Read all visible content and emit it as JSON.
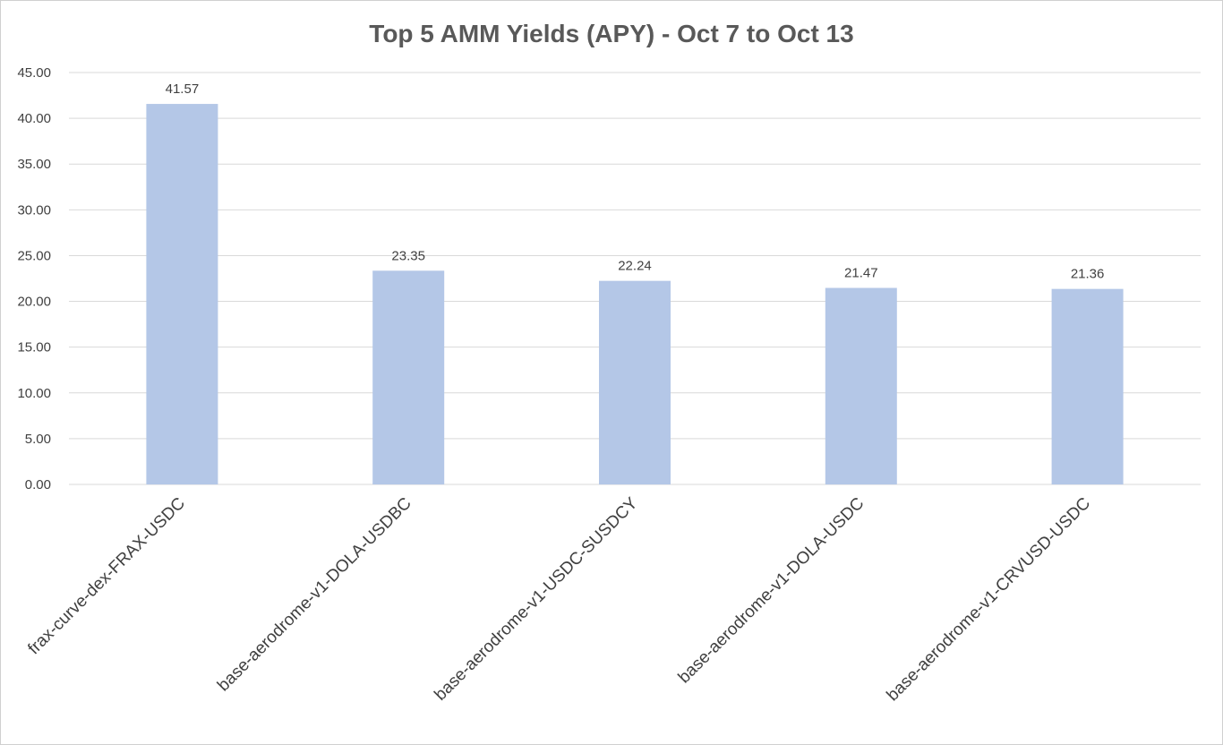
{
  "chart_data": {
    "type": "bar",
    "title": "Top 5 AMM Yields (APY) - Oct 7 to Oct 13",
    "categories": [
      "frax-curve-dex-FRAX-USDC",
      "base-aerodrome-v1-DOLA-USDBC",
      "base-aerodrome-v1-USDC-SUSDCY",
      "base-aerodrome-v1-DOLA-USDC",
      "base-aerodrome-v1-CRVUSD-USDC"
    ],
    "values": [
      41.57,
      23.35,
      22.24,
      21.47,
      21.36
    ],
    "data_labels": [
      "41.57",
      "23.35",
      "22.24",
      "21.47",
      "21.36"
    ],
    "ylim": [
      0,
      45
    ],
    "yticks": [
      "0.00",
      "5.00",
      "10.00",
      "15.00",
      "20.00",
      "25.00",
      "30.00",
      "35.00",
      "40.00",
      "45.00"
    ],
    "xlabel": "",
    "ylabel": "",
    "grid": true,
    "legend": "none",
    "bar_color": "#b4c7e7"
  }
}
